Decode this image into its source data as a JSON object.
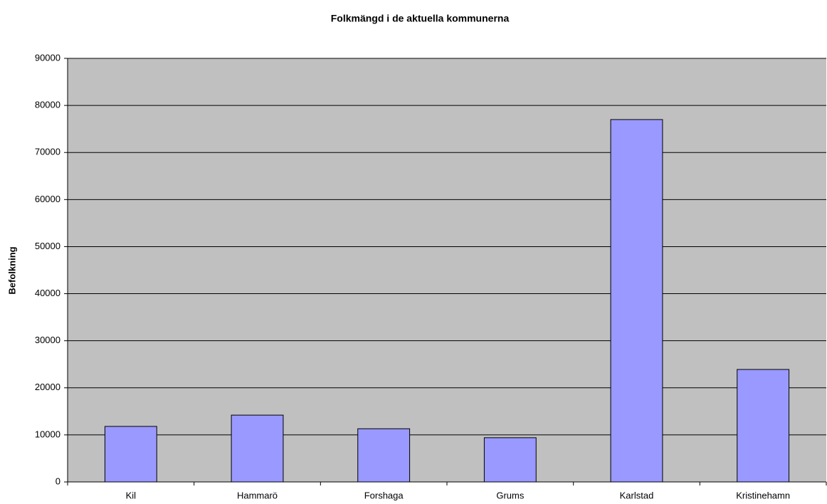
{
  "chart_data": {
    "type": "bar",
    "title": "Folkmängd i de aktuella kommunerna",
    "y_label": "Befolkning",
    "categories": [
      "Kil",
      "Hammarö",
      "Forshaga",
      "Grums",
      "Karlstad",
      "Kristinehamn"
    ],
    "values": [
      11800,
      14200,
      11300,
      9400,
      77000,
      23900
    ],
    "color": "#9999ff",
    "ylim": [
      0,
      90000
    ],
    "yticks": [
      0,
      10000,
      20000,
      30000,
      40000,
      50000,
      60000,
      70000,
      80000,
      90000
    ],
    "grid": true
  }
}
